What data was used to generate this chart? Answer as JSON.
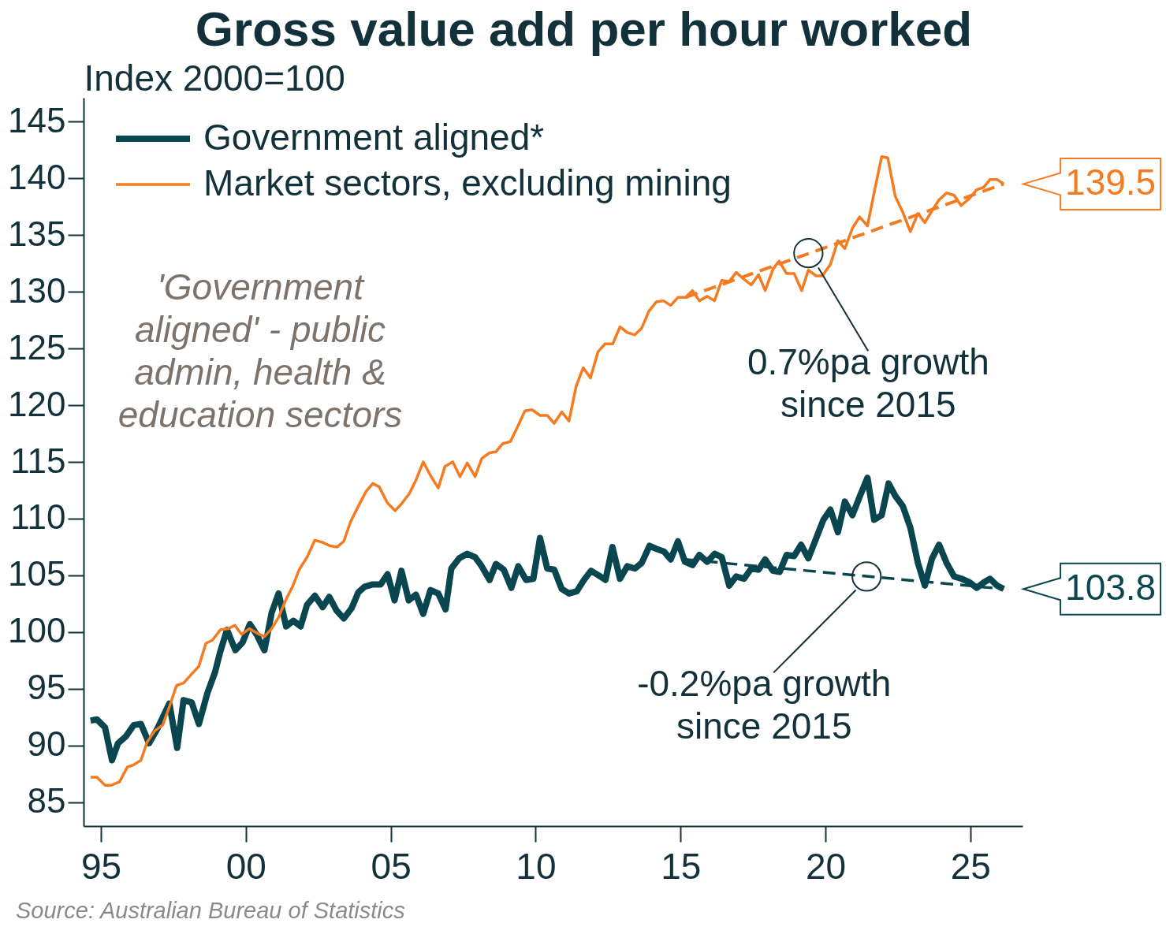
{
  "chart_data": {
    "type": "line",
    "title": "Gross value add per hour worked",
    "ylabel": "Index 2000=100",
    "xlim": [
      1994.4,
      2026.8
    ],
    "ylim": [
      82.9,
      147.1
    ],
    "xticks": [
      {
        "value": 1995,
        "label": "95"
      },
      {
        "value": 2000,
        "label": "00"
      },
      {
        "value": 2005,
        "label": "05"
      },
      {
        "value": 2010,
        "label": "10"
      },
      {
        "value": 2015,
        "label": "15"
      },
      {
        "value": 2020,
        "label": "20"
      },
      {
        "value": 2025,
        "label": "25"
      }
    ],
    "yticks": [
      85,
      90,
      95,
      100,
      105,
      110,
      115,
      120,
      125,
      130,
      135,
      140,
      145
    ],
    "legend": "top left",
    "series": [
      {
        "name": "Government aligned*",
        "color": "#0a4650",
        "x": [
          1994.64,
          1994.86,
          1995.14,
          1995.38,
          1995.59,
          1995.86,
          1996.13,
          1996.38,
          1996.66,
          1996.95,
          1997.36,
          1997.63,
          1997.85,
          1998.13,
          1998.38,
          1998.67,
          1998.94,
          1999.12,
          1999.35,
          1999.64,
          1999.89,
          2000.14,
          2000.39,
          2000.64,
          2000.89,
          2001.13,
          2001.39,
          2001.64,
          2001.89,
          2002.11,
          2002.38,
          2002.65,
          2002.88,
          2003.13,
          2003.38,
          2003.65,
          2003.88,
          2004.1,
          2004.38,
          2004.65,
          2004.89,
          2005.13,
          2005.37,
          2005.62,
          2005.87,
          2006.12,
          2006.37,
          2006.64,
          2006.89,
          2007.09,
          2007.36,
          2007.64,
          2007.91,
          2008.14,
          2008.41,
          2008.63,
          2008.9,
          2009.16,
          2009.4,
          2009.67,
          2009.92,
          2010.15,
          2010.4,
          2010.64,
          2010.9,
          2011.15,
          2011.42,
          2011.67,
          2011.91,
          2012.17,
          2012.41,
          2012.65,
          2012.91,
          2013.16,
          2013.42,
          2013.66,
          2013.93,
          2014.2,
          2014.43,
          2014.66,
          2014.91,
          2015.15,
          2015.41,
          2015.65,
          2015.92,
          2016.18,
          2016.42,
          2016.68,
          2016.92,
          2017.19,
          2017.44,
          2017.69,
          2017.92,
          2018.19,
          2018.42,
          2018.66,
          2018.92,
          2019.16,
          2019.41,
          2019.7,
          2019.93,
          2020.17,
          2020.43,
          2020.67,
          2020.93,
          2021.19,
          2021.45,
          2021.68,
          2021.94,
          2022.18,
          2022.41,
          2022.67,
          2022.93,
          2023.19,
          2023.43,
          2023.68,
          2023.92,
          2024.18,
          2024.44,
          2024.7,
          2024.96,
          2025.22,
          2025.48,
          2025.68,
          2025.92,
          2026.15
        ],
        "values": [
          92.2,
          92.3,
          91.6,
          88.7,
          90.2,
          90.8,
          91.8,
          91.9,
          90.2,
          91.5,
          93.7,
          89.8,
          94.0,
          93.8,
          91.9,
          94.6,
          96.5,
          98.3,
          100.2,
          98.4,
          99.1,
          100.7,
          99.7,
          98.4,
          101.7,
          103.4,
          100.5,
          101.0,
          100.5,
          102.4,
          103.2,
          102.2,
          103.1,
          101.9,
          101.2,
          102.1,
          103.5,
          104.0,
          104.2,
          104.2,
          105.1,
          102.8,
          105.4,
          102.8,
          103.3,
          101.6,
          103.7,
          103.4,
          102.0,
          105.6,
          106.5,
          106.9,
          106.6,
          105.8,
          104.6,
          106.0,
          105.5,
          103.9,
          105.8,
          104.6,
          104.7,
          108.3,
          105.6,
          105.5,
          103.8,
          103.4,
          103.6,
          104.6,
          105.4,
          105.0,
          104.6,
          107.5,
          104.7,
          105.8,
          105.6,
          106.1,
          107.6,
          107.3,
          107.1,
          106.4,
          108.0,
          106.2,
          105.9,
          106.8,
          106.2,
          106.9,
          106.6,
          104.1,
          104.9,
          104.7,
          105.6,
          105.5,
          106.4,
          105.4,
          105.3,
          106.8,
          106.7,
          107.7,
          106.5,
          108.4,
          109.9,
          110.8,
          108.8,
          111.5,
          110.3,
          112.0,
          113.6,
          109.9,
          110.3,
          113.1,
          112.0,
          111.1,
          109.2,
          106.1,
          104.1,
          106.5,
          107.7,
          106.1,
          104.9,
          104.7,
          104.4,
          103.9,
          104.4,
          104.7,
          104.1,
          103.8
        ],
        "value_labels": [
          null,
          null,
          null,
          null,
          null,
          null,
          null,
          null,
          null,
          null,
          null,
          null,
          null,
          null,
          null,
          null,
          null,
          null,
          null,
          null,
          null,
          null,
          null,
          null,
          null,
          null,
          null,
          null,
          null,
          null,
          null,
          null,
          null,
          null,
          null,
          null,
          null,
          null,
          null,
          null,
          null,
          null,
          null,
          null,
          null,
          null,
          null,
          null,
          null,
          null,
          null,
          null,
          null,
          null,
          null,
          null,
          null,
          null,
          null,
          null,
          null,
          null,
          null,
          null,
          null,
          null,
          null,
          null,
          null,
          null,
          null,
          null,
          null,
          null,
          null,
          null,
          null,
          null,
          null,
          null,
          null,
          null,
          null,
          null,
          null,
          null,
          null,
          null,
          null,
          null,
          null,
          null,
          null,
          null,
          null,
          null,
          null,
          null,
          null,
          null,
          null,
          null,
          null,
          null,
          null,
          null,
          null,
          null,
          null,
          null,
          null,
          null,
          null,
          null,
          null,
          null,
          null,
          null,
          null,
          null,
          null,
          null,
          null,
          null,
          null,
          "103.8"
        ]
      },
      {
        "name": "Market sectors, excluding mining",
        "color": "#f47b20",
        "x": [
          1994.64,
          1994.86,
          1995.14,
          1995.36,
          1995.64,
          1995.91,
          1996.13,
          1996.38,
          1996.59,
          1996.86,
          1997.13,
          1997.36,
          1997.61,
          1997.85,
          1998.13,
          1998.38,
          1998.62,
          1998.85,
          1999.12,
          1999.39,
          1999.62,
          1999.85,
          2000.12,
          2000.39,
          2000.64,
          2000.89,
          2001.13,
          2001.39,
          2001.61,
          2001.84,
          2002.11,
          2002.38,
          2002.65,
          2002.9,
          2003.15,
          2003.38,
          2003.61,
          2003.88,
          2004.15,
          2004.38,
          2004.6,
          2004.88,
          2005.15,
          2005.37,
          2005.64,
          2005.87,
          2006.12,
          2006.37,
          2006.64,
          2006.87,
          2007.14,
          2007.39,
          2007.64,
          2007.91,
          2008.14,
          2008.41,
          2008.63,
          2008.86,
          2009.13,
          2009.36,
          2009.63,
          2009.88,
          2010.15,
          2010.4,
          2010.64,
          2010.9,
          2011.15,
          2011.4,
          2011.64,
          2011.89,
          2012.15,
          2012.39,
          2012.66,
          2012.91,
          2013.16,
          2013.42,
          2013.66,
          2013.91,
          2014.16,
          2014.41,
          2014.66,
          2014.91,
          2015.17,
          2015.41,
          2015.65,
          2015.92,
          2016.17,
          2016.42,
          2016.68,
          2016.92,
          2017.19,
          2017.44,
          2017.69,
          2017.92,
          2018.19,
          2018.4,
          2018.66,
          2018.92,
          2019.18,
          2019.41,
          2019.68,
          2019.89,
          2020.17,
          2020.43,
          2020.67,
          2020.93,
          2021.18,
          2021.45,
          2021.7,
          2021.94,
          2022.15,
          2022.41,
          2022.67,
          2022.93,
          2023.19,
          2023.43,
          2023.69,
          2023.92,
          2024.18,
          2024.44,
          2024.68,
          2024.96,
          2025.22,
          2025.46,
          2025.68,
          2025.92,
          2026.15
        ],
        "values": [
          87.2,
          87.2,
          86.5,
          86.5,
          86.8,
          88.1,
          88.3,
          88.7,
          90.3,
          91.3,
          91.8,
          93.4,
          95.3,
          95.5,
          96.3,
          97.0,
          99.0,
          99.3,
          100.2,
          100.3,
          100.6,
          99.8,
          100.3,
          99.9,
          99.6,
          100.3,
          101.3,
          102.9,
          104.0,
          105.5,
          106.6,
          108.1,
          107.9,
          107.6,
          107.5,
          108.0,
          109.7,
          111.1,
          112.4,
          113.1,
          112.8,
          111.4,
          110.7,
          111.3,
          112.2,
          113.4,
          115.0,
          113.8,
          112.7,
          114.6,
          115.0,
          113.7,
          114.9,
          113.7,
          115.3,
          115.8,
          115.9,
          116.6,
          116.8,
          118.0,
          119.5,
          119.6,
          119.1,
          119.1,
          118.4,
          119.4,
          118.6,
          121.7,
          123.3,
          122.4,
          124.7,
          125.4,
          125.4,
          126.9,
          126.4,
          126.2,
          126.8,
          128.3,
          129.1,
          129.2,
          128.8,
          129.5,
          129.5,
          130.1,
          129.2,
          129.6,
          129.2,
          131.0,
          130.9,
          131.7,
          131.1,
          130.6,
          131.5,
          130.1,
          132.0,
          132.7,
          131.6,
          131.6,
          130.1,
          131.9,
          131.4,
          131.4,
          132.4,
          134.5,
          133.8,
          135.6,
          136.6,
          135.8,
          139.0,
          141.9,
          141.8,
          138.4,
          137.0,
          135.3,
          136.9,
          136.1,
          137.2,
          138.1,
          138.7,
          138.5,
          137.6,
          138.2,
          139.0,
          139.2,
          139.9,
          139.9,
          139.5
        ],
        "value_labels": [
          null,
          null,
          null,
          null,
          null,
          null,
          null,
          null,
          null,
          null,
          null,
          null,
          null,
          null,
          null,
          null,
          null,
          null,
          null,
          null,
          null,
          null,
          null,
          null,
          null,
          null,
          null,
          null,
          null,
          null,
          null,
          null,
          null,
          null,
          null,
          null,
          null,
          null,
          null,
          null,
          null,
          null,
          null,
          null,
          null,
          null,
          null,
          null,
          null,
          null,
          null,
          null,
          null,
          null,
          null,
          null,
          null,
          null,
          null,
          null,
          null,
          null,
          null,
          null,
          null,
          null,
          null,
          null,
          null,
          null,
          null,
          null,
          null,
          null,
          null,
          null,
          null,
          null,
          null,
          null,
          null,
          null,
          null,
          null,
          null,
          null,
          null,
          null,
          null,
          null,
          null,
          null,
          null,
          null,
          null,
          null,
          null,
          null,
          null,
          null,
          null,
          null,
          null,
          null,
          null,
          null,
          null,
          null,
          null,
          null,
          null,
          null,
          null,
          null,
          null,
          null,
          null,
          null,
          null,
          null,
          null,
          null,
          null,
          null,
          null,
          null,
          "139.5"
        ]
      },
      {
        "type": "line",
        "color": "#f47b20",
        "line_style": "dashed",
        "x": [
          2015.17,
          2026.15
        ],
        "values": [
          129.5,
          139.5
        ]
      },
      {
        "type": "line",
        "color": "#0a4650",
        "line_style": "dashed",
        "x": [
          2015.17,
          2026.15
        ],
        "values": [
          106.4,
          103.8
        ]
      }
    ],
    "annotations": [
      {
        "text": "0.7%pa growth since 2015",
        "x": 2019.41,
        "y": 133.4
      },
      {
        "text": "-0.2%pa growth since 2015",
        "x": 2021.42,
        "y": 104.9
      },
      "'Government aligned' - public admin, health & education sectors",
      "Source: Australian Bureau of Statistics"
    ]
  }
}
